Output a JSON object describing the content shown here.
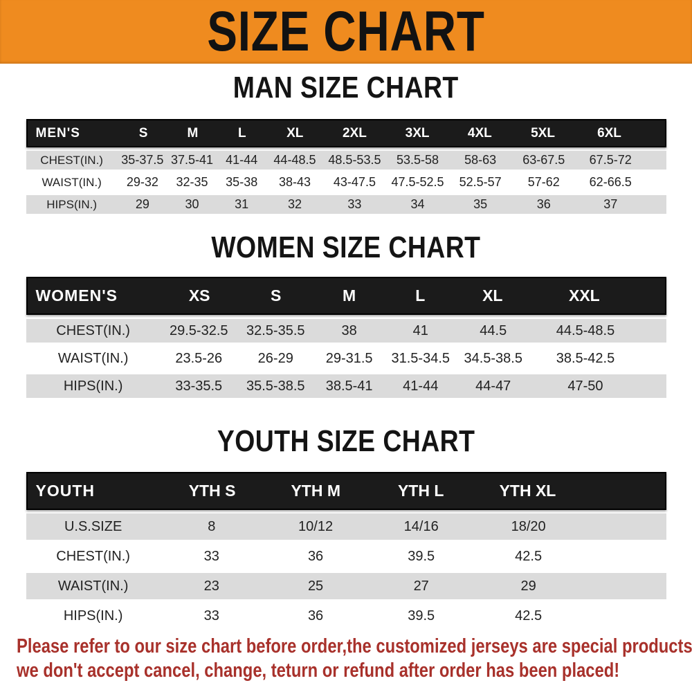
{
  "banner": {
    "title": "SIZE CHART"
  },
  "colors": {
    "banner_orange": "#EF8B1F",
    "header_black": "#1B1B1B",
    "row_gray": "#DBDBDB",
    "footer_red": "#A8312B"
  },
  "sections": [
    {
      "title": "MAN SIZE CHART",
      "header_label": "MEN'S",
      "columns": [
        "S",
        "M",
        "L",
        "XL",
        "2XL",
        "3XL",
        "4XL",
        "5XL",
        "6XL"
      ],
      "rows": [
        {
          "label": "CHEST(IN.)",
          "values": [
            "35-37.5",
            "37.5-41",
            "41-44",
            "44-48.5",
            "48.5-53.5",
            "53.5-58",
            "58-63",
            "63-67.5",
            "67.5-72"
          ]
        },
        {
          "label": "WAIST(IN.)",
          "values": [
            "29-32",
            "32-35",
            "35-38",
            "38-43",
            "43-47.5",
            "47.5-52.5",
            "52.5-57",
            "57-62",
            "62-66.5"
          ]
        },
        {
          "label": "HIPS(IN.)",
          "values": [
            "29",
            "30",
            "31",
            "32",
            "33",
            "34",
            "35",
            "36",
            "37"
          ]
        }
      ]
    },
    {
      "title": "WOMEN SIZE CHART",
      "header_label": "WOMEN'S",
      "columns": [
        "XS",
        "S",
        "M",
        "L",
        "XL",
        "XXL"
      ],
      "rows": [
        {
          "label": "CHEST(IN.)",
          "values": [
            "29.5-32.5",
            "32.5-35.5",
            "38",
            "41",
            "44.5",
            "44.5-48.5"
          ]
        },
        {
          "label": "WAIST(IN.)",
          "values": [
            "23.5-26",
            "26-29",
            "29-31.5",
            "31.5-34.5",
            "34.5-38.5",
            "38.5-42.5"
          ]
        },
        {
          "label": "HIPS(IN.)",
          "values": [
            "33-35.5",
            "35.5-38.5",
            "38.5-41",
            "41-44",
            "44-47",
            "47-50"
          ]
        }
      ]
    },
    {
      "title": "YOUTH SIZE CHART",
      "header_label": "YOUTH",
      "columns": [
        "YTH S",
        "YTH M",
        "YTH L",
        "YTH XL"
      ],
      "rows": [
        {
          "label": "U.S.SIZE",
          "values": [
            "8",
            "10/12",
            "14/16",
            "18/20"
          ]
        },
        {
          "label": "CHEST(IN.)",
          "values": [
            "33",
            "36",
            "39.5",
            "42.5"
          ]
        },
        {
          "label": "WAIST(IN.)",
          "values": [
            "23",
            "25",
            "27",
            "29"
          ]
        },
        {
          "label": "HIPS(IN.)",
          "values": [
            "33",
            "36",
            "39.5",
            "42.5"
          ]
        }
      ]
    }
  ],
  "footer": {
    "line1": "Please refer to our size chart before order,the customized jerseys are special products,",
    "line2": "we don't accept cancel, change, teturn or refund after order has been placed!"
  }
}
